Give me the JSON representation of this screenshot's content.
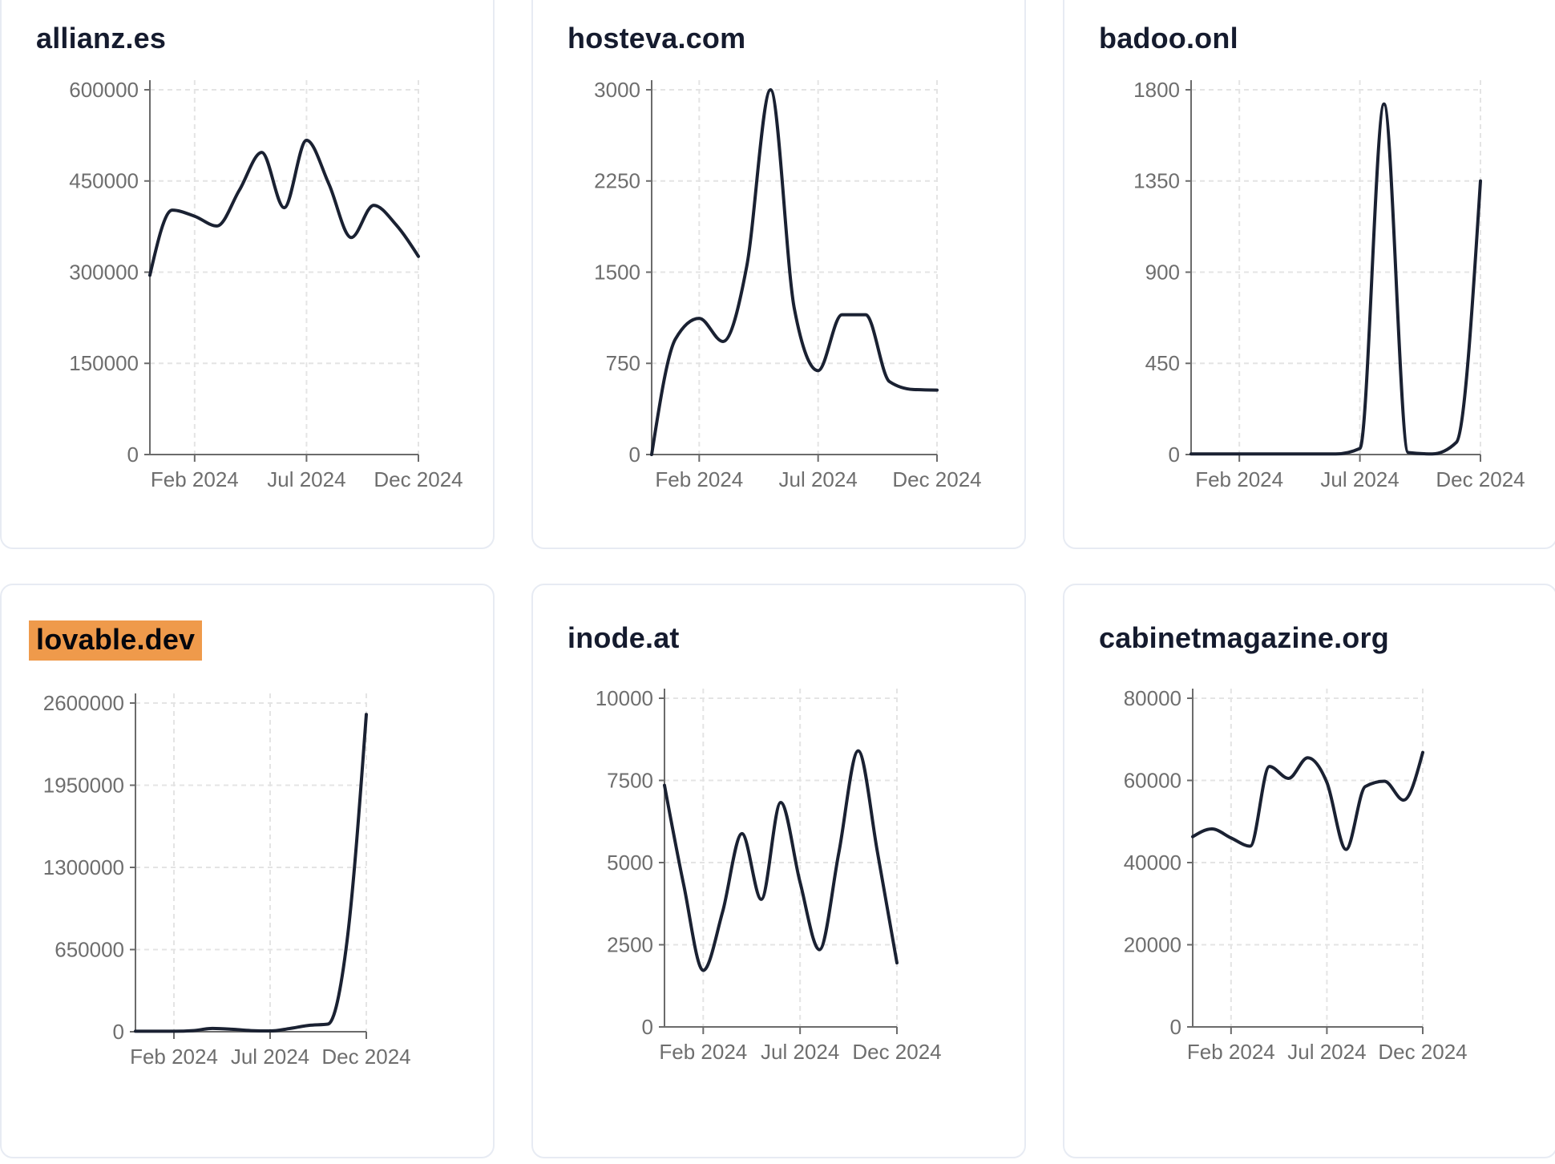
{
  "page": {
    "background": "#ffffff"
  },
  "colors": {
    "line": "#1a2132",
    "title": "#151b2e",
    "axis": "#6b6b6b",
    "tick_label": "#6e6e6e",
    "grid": "#e4e4e4",
    "card_border": "#e7ebf3",
    "card_background": "#ffffff",
    "highlight_background": "#ef9a4b",
    "highlight_text": "#05070d"
  },
  "x_axis": {
    "tick_labels": [
      "Feb 2024",
      "Jul 2024",
      "Dec 2024"
    ],
    "tick_month_index": [
      2,
      7,
      12
    ],
    "range": "Dec 2023 to Dec 2024, 13 monthly points",
    "grid": "dashed",
    "legend_position": "none"
  },
  "chart_data": [
    {
      "type": "line",
      "title": "allianz.es",
      "highlighted": false,
      "ylim": [
        0,
        600000
      ],
      "y_ticks": [
        0,
        150000,
        300000,
        450000,
        600000
      ],
      "x_tick_labels": [
        "Feb 2024",
        "Jul 2024",
        "Dec 2024"
      ],
      "values": [
        295000,
        402000,
        392000,
        376000,
        435000,
        497000,
        406000,
        517000,
        445000,
        357000,
        410000,
        378000,
        326000
      ]
    },
    {
      "type": "line",
      "title": "hosteva.com",
      "highlighted": false,
      "ylim": [
        0,
        3000
      ],
      "y_ticks": [
        0,
        750,
        1500,
        2250,
        3000
      ],
      "x_tick_labels": [
        "Feb 2024",
        "Jul 2024",
        "Dec 2024"
      ],
      "values": [
        0,
        950,
        1120,
        930,
        1550,
        3000,
        1200,
        690,
        1150,
        1150,
        600,
        535,
        530
      ]
    },
    {
      "type": "line",
      "title": "badoo.onl",
      "highlighted": false,
      "ylim": [
        0,
        1800
      ],
      "y_ticks": [
        0,
        450,
        900,
        1350,
        1800
      ],
      "x_tick_labels": [
        "Feb 2024",
        "Jul 2024",
        "Dec 2024"
      ],
      "values": [
        3,
        3,
        3,
        3,
        3,
        3,
        3,
        30,
        1730,
        10,
        3,
        60,
        1350
      ]
    },
    {
      "type": "line",
      "title": "lovable.dev",
      "highlighted": true,
      "ylim": [
        0,
        2600000
      ],
      "y_ticks": [
        0,
        650000,
        1300000,
        1950000,
        2600000
      ],
      "x_tick_labels": [
        "Feb 2024",
        "Jul 2024",
        "Dec 2024"
      ],
      "values": [
        4000,
        4000,
        4000,
        9000,
        26000,
        20000,
        9000,
        6000,
        25000,
        50000,
        60000,
        720000,
        2510000
      ]
    },
    {
      "type": "line",
      "title": "inode.at",
      "highlighted": false,
      "ylim": [
        0,
        10000
      ],
      "y_ticks": [
        0,
        2500,
        5000,
        7500,
        10000
      ],
      "x_tick_labels": [
        "Feb 2024",
        "Jul 2024",
        "Dec 2024"
      ],
      "values": [
        7350,
        4300,
        1720,
        3500,
        5880,
        3880,
        6830,
        4400,
        2350,
        5300,
        8400,
        5300,
        1950
      ]
    },
    {
      "type": "line",
      "title": "cabinetmagazine.org",
      "highlighted": false,
      "ylim": [
        0,
        80000
      ],
      "y_ticks": [
        0,
        20000,
        40000,
        60000,
        80000
      ],
      "x_tick_labels": [
        "Feb 2024",
        "Jul 2024",
        "Dec 2024"
      ],
      "values": [
        46300,
        48200,
        46000,
        44000,
        63400,
        60500,
        65500,
        59500,
        43200,
        58500,
        59800,
        55200,
        66800
      ]
    }
  ]
}
